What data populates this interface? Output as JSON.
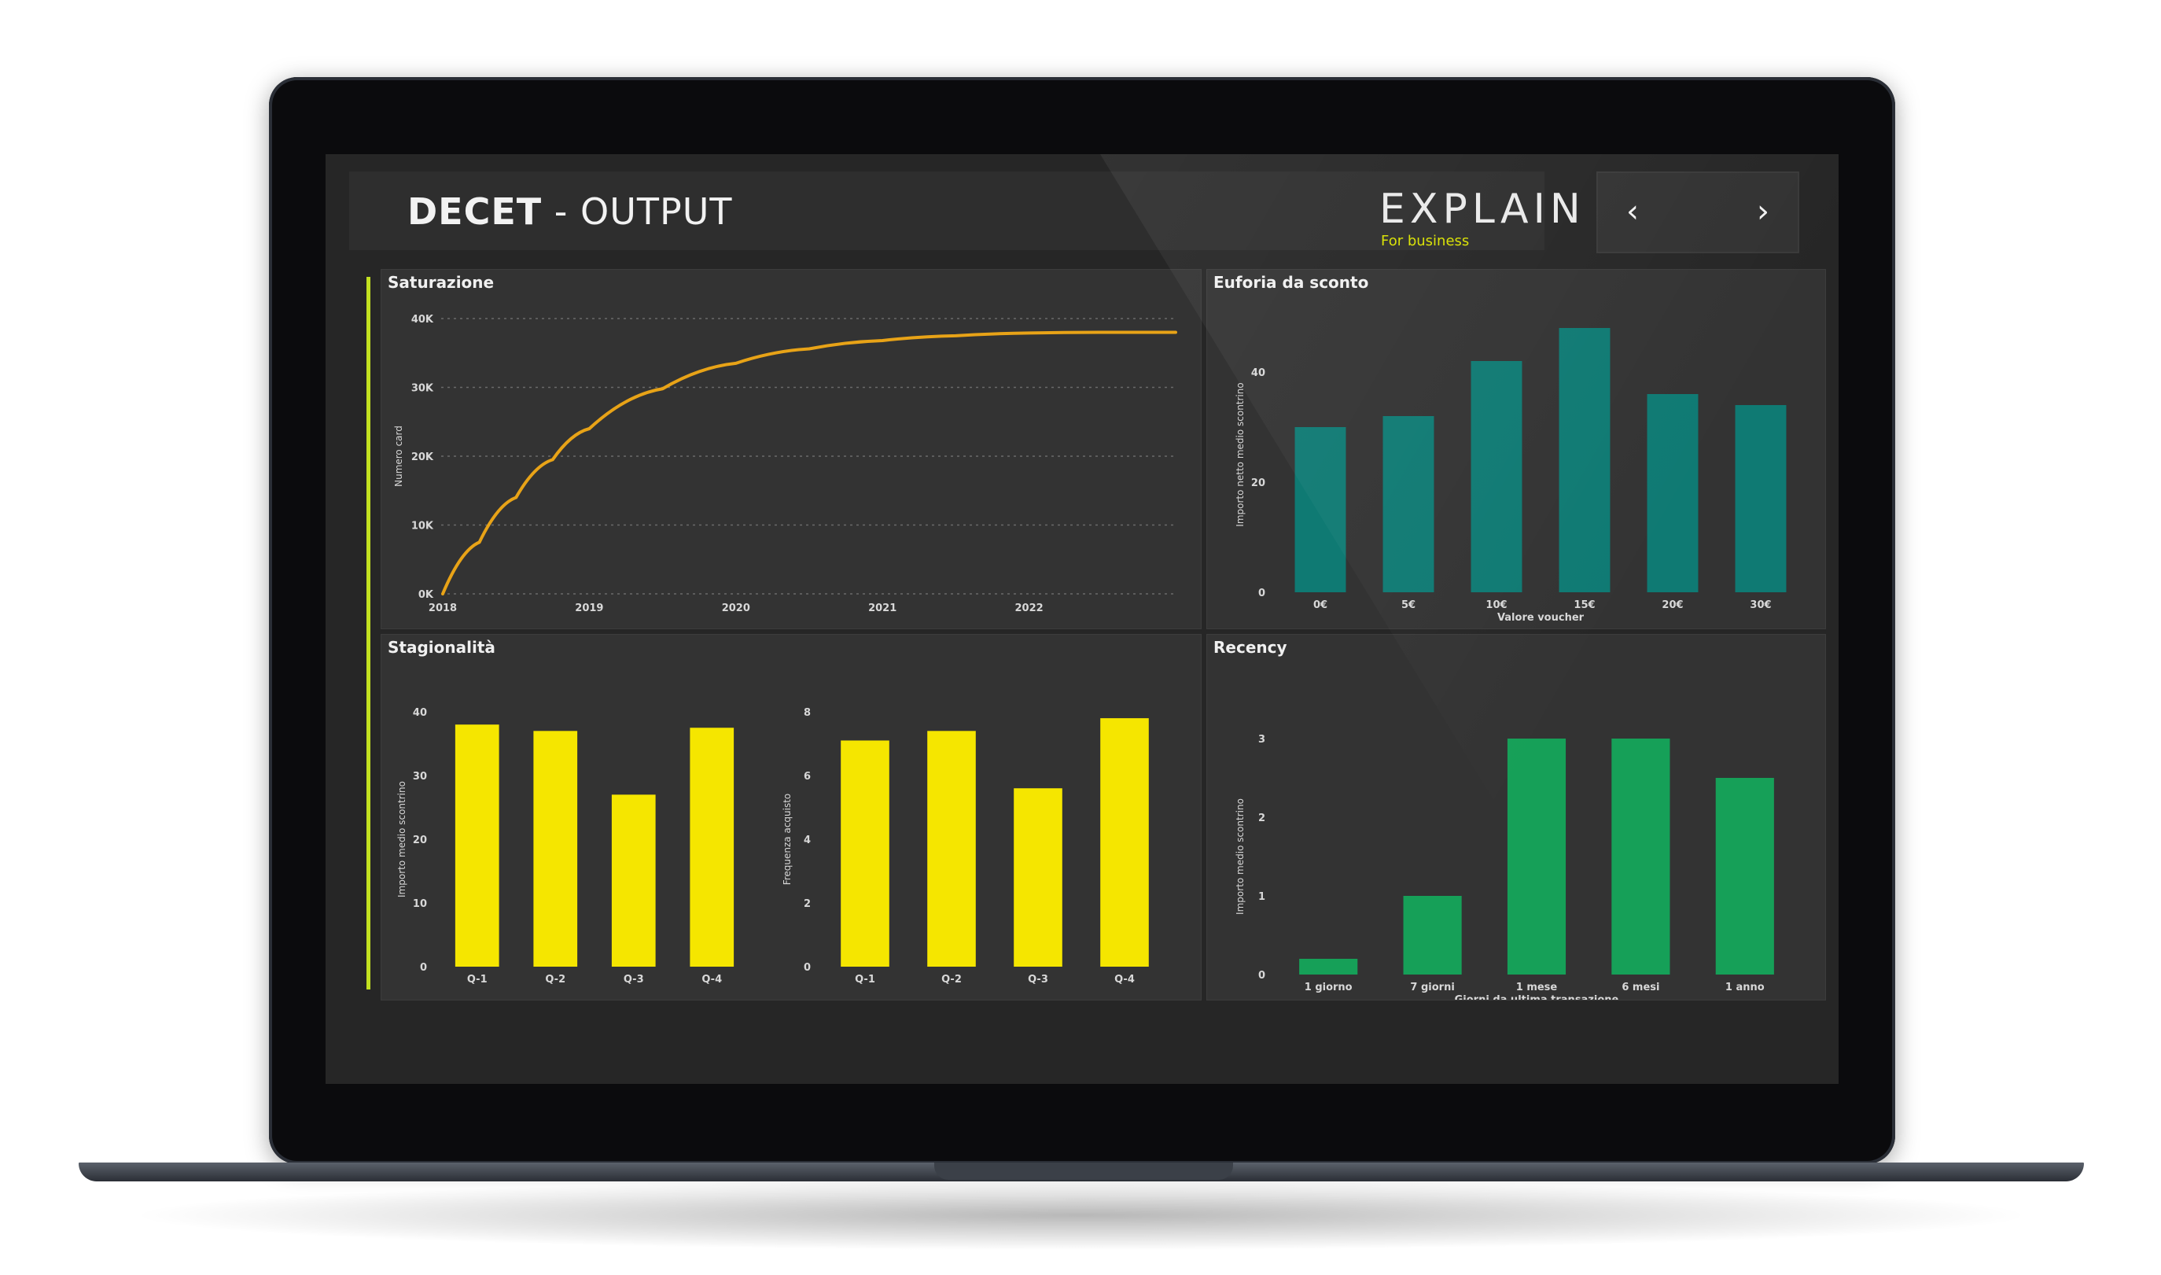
{
  "header": {
    "title_bold": "DECET",
    "title_rest": " - OUTPUT",
    "logo_text": "EXPLAIN",
    "logo_subtitle": "For business",
    "prev_icon": "chevron-left-icon",
    "next_icon": "chevron-right-icon",
    "prev_symbol": "‹",
    "next_symbol": "›"
  },
  "panels": {
    "saturazione": {
      "title": "Saturazione"
    },
    "euforia": {
      "title": "Euforia da sconto"
    },
    "stagionalita": {
      "title": "Stagionalità"
    },
    "recency": {
      "title": "Recency"
    }
  },
  "colors": {
    "accent": "#c2e020",
    "line": "#e8a317",
    "teal": "#0f7a73",
    "yellow": "#f5e600",
    "green": "#16a058"
  },
  "chart_data": [
    {
      "id": "saturazione",
      "type": "line",
      "title": "Saturazione",
      "ylabel": "Numero card",
      "xlabel": "",
      "x": [
        2018,
        2018.25,
        2018.5,
        2018.75,
        2019,
        2019.5,
        2020,
        2020.5,
        2021,
        2021.5,
        2022,
        2022.5,
        2023.0
      ],
      "series": [
        {
          "values": [
            0,
            7500,
            14000,
            19500,
            24000,
            29800,
            33500,
            35600,
            36800,
            37500,
            37900,
            38000,
            38000
          ]
        }
      ],
      "ylim": [
        0,
        40000
      ],
      "xlim": [
        2018,
        2023
      ],
      "yticks": [
        "0K",
        "10K",
        "20K",
        "30K",
        "40K"
      ],
      "xticks": [
        "2018",
        "2019",
        "2020",
        "2021",
        "2022"
      ],
      "grid": true
    },
    {
      "id": "euforia",
      "type": "bar",
      "title": "Euforia da sconto",
      "categories": [
        "0€",
        "5€",
        "10€",
        "15€",
        "20€",
        "30€"
      ],
      "values": [
        30,
        32,
        42,
        48,
        36,
        34
      ],
      "xlabel": "Valore voucher",
      "ylabel": "Importo netto medio scontrino",
      "ylim": [
        0,
        50
      ],
      "yticks": [
        "0",
        "20",
        "40"
      ]
    },
    {
      "id": "stagionalita-importo",
      "type": "bar",
      "categories": [
        "Q-1",
        "Q-2",
        "Q-3",
        "Q-4"
      ],
      "values": [
        38,
        37,
        27,
        37.5
      ],
      "ylabel": "Importo medio scontrino",
      "ylim": [
        0,
        40
      ],
      "yticks": [
        "0",
        "10",
        "20",
        "30",
        "40"
      ]
    },
    {
      "id": "stagionalita-frequenza",
      "type": "bar",
      "categories": [
        "Q-1",
        "Q-2",
        "Q-3",
        "Q-4"
      ],
      "values": [
        7.1,
        7.4,
        5.6,
        7.8
      ],
      "ylabel": "Frequenza acquisto",
      "ylim": [
        0,
        8
      ],
      "yticks": [
        "0",
        "2",
        "4",
        "6",
        "8"
      ]
    },
    {
      "id": "recency",
      "type": "bar",
      "title": "Recency",
      "categories": [
        "1 giorno",
        "7 giorni",
        "1 mese",
        "6 mesi",
        "1 anno"
      ],
      "values": [
        0.2,
        1.0,
        3.0,
        3.0,
        2.5
      ],
      "xlabel": "Giorni da ultima transazione",
      "ylabel": "Importo medio scontrino",
      "ylim": [
        0,
        3
      ],
      "yticks": [
        "0",
        "1",
        "2",
        "3"
      ]
    }
  ]
}
